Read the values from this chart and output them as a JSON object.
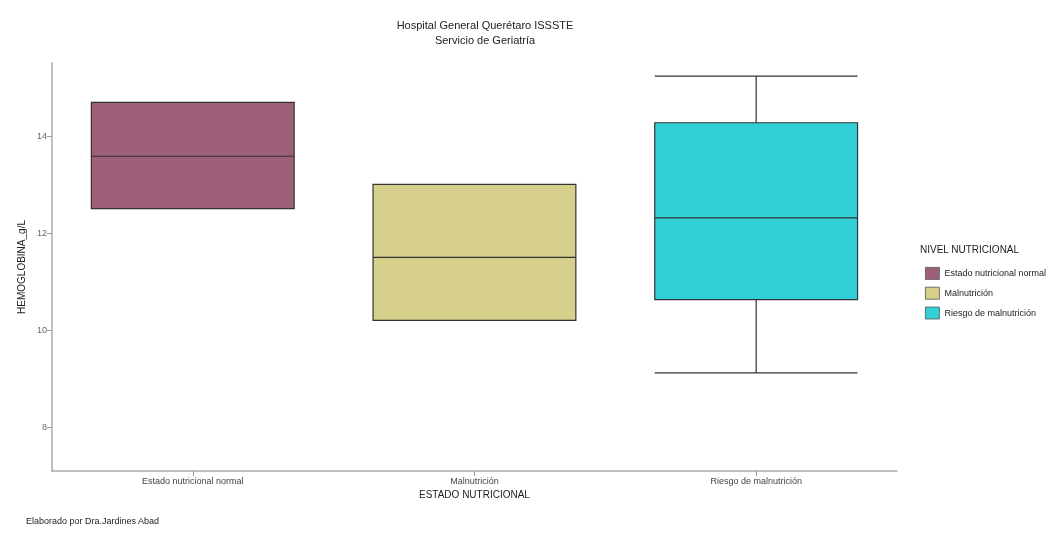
{
  "chart_data": {
    "type": "box",
    "title": "Hospital General Querétaro ISSSTE",
    "subtitle": "Servicio de Geriatría",
    "xlabel": "ESTADO NUTRICIONAL",
    "ylabel": "HEMOGLOBINA_g/L",
    "legend_title": "NIVEL NUTRICIONAL",
    "legend": "right",
    "grid": false,
    "categories": [
      "Estado nutricional normal",
      "Malnutrición",
      "Riesgo de malnutrición"
    ],
    "series": [
      {
        "name": "Estado nutricional normal",
        "color": "#9e5f7b",
        "boxes": [
          {
            "low": 12.5,
            "q1": 12.5,
            "median": 13.58,
            "q3": 14.69,
            "high": 14.69
          },
          null,
          null
        ]
      },
      {
        "name": "Malnutrición",
        "color": "#d6d08c",
        "boxes": [
          null,
          {
            "low": 10.2,
            "q1": 10.2,
            "median": 11.5,
            "q3": 13.0,
            "high": 13.0
          },
          null
        ]
      },
      {
        "name": "Riesgo de malnutrición",
        "color": "#33cfd6",
        "boxes": [
          null,
          null,
          {
            "low": 9.12,
            "q1": 10.63,
            "median": 12.31,
            "q3": 14.27,
            "high": 15.23
          }
        ]
      }
    ],
    "ylim": [
      7.1,
      15.5
    ],
    "yticks": [
      8,
      10,
      12,
      14
    ],
    "annotations": [
      "Elaborado por Dra.Jardines Abad"
    ]
  }
}
